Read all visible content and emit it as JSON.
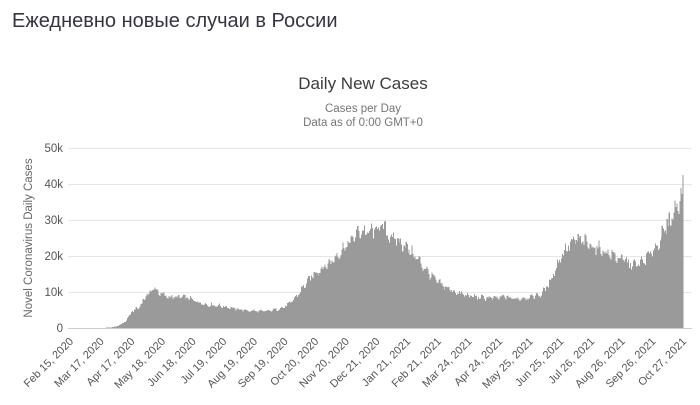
{
  "page": {
    "title": "Ежедневно новые случаи в России"
  },
  "chart": {
    "title": "Daily New Cases",
    "subtitle_line1": "Cases per Day",
    "subtitle_line2": "Data as of 0:00 GMT+0",
    "y_axis_title": "Novel Coronavirus Daily Cases"
  },
  "colors": {
    "page_title": "#35353f",
    "chart_title": "#3c3c3c",
    "subtitle": "#757575",
    "axis_labels": "#555555",
    "y_axis_title": "#666666",
    "bars": "#9a9a9a",
    "gridlines": "#e6e6e6",
    "axis_line": "#cccccc",
    "background": "#ffffff"
  },
  "chart_data": {
    "type": "bar",
    "title": "Daily New Cases",
    "subtitle": [
      "Cases per Day",
      "Data as of 0:00 GMT+0"
    ],
    "ylabel": "Novel Coronavirus Daily Cases",
    "xlabel": "",
    "ylim": [
      0,
      50000
    ],
    "grid": true,
    "legend": false,
    "bar_color": "#9a9a9a",
    "x_range": [
      "2020-02-15",
      "2021-10-27"
    ],
    "y_ticks": [
      [
        0,
        "0"
      ],
      [
        10000,
        "10k"
      ],
      [
        20000,
        "20k"
      ],
      [
        30000,
        "30k"
      ],
      [
        40000,
        "40k"
      ],
      [
        50000,
        "50k"
      ]
    ],
    "x_ticks": [
      [
        0,
        "Feb 15, 2020"
      ],
      [
        31,
        "Mar 17, 2020"
      ],
      [
        62,
        "Apr 17, 2020"
      ],
      [
        93,
        "May 18, 2020"
      ],
      [
        124,
        "Jun 18, 2020"
      ],
      [
        155,
        "Jul 19, 2020"
      ],
      [
        186,
        "Aug 19, 2020"
      ],
      [
        217,
        "Sep 19, 2020"
      ],
      [
        248,
        "Oct 20, 2020"
      ],
      [
        279,
        "Nov 20, 2020"
      ],
      [
        310,
        "Dec 21, 2020"
      ],
      [
        341,
        "Jan 21, 2021"
      ],
      [
        372,
        "Feb 21, 2021"
      ],
      [
        403,
        "Mar 24, 2021"
      ],
      [
        434,
        "Apr 24, 2021"
      ],
      [
        465,
        "May 25, 2021"
      ],
      [
        496,
        "Jun 25, 2021"
      ],
      [
        527,
        "Jul 26, 2021"
      ],
      [
        558,
        "Aug 26, 2021"
      ],
      [
        589,
        "Sep 26, 2021"
      ],
      [
        620,
        "Oct 27, 2021"
      ]
    ],
    "samples": [
      [
        "2020-02-15",
        0
      ],
      [
        "2020-02-29",
        1
      ],
      [
        "2020-03-07",
        5
      ],
      [
        "2020-03-14",
        20
      ],
      [
        "2020-03-21",
        50
      ],
      [
        "2020-03-28",
        180
      ],
      [
        "2020-04-04",
        600
      ],
      [
        "2020-04-11",
        1900
      ],
      [
        "2020-04-18",
        4900
      ],
      [
        "2020-04-25",
        5900
      ],
      [
        "2020-05-02",
        9200
      ],
      [
        "2020-05-09",
        11200
      ],
      [
        "2020-05-11",
        11500
      ],
      [
        "2020-05-16",
        10000
      ],
      [
        "2020-05-23",
        9100
      ],
      [
        "2020-05-30",
        8900
      ],
      [
        "2020-06-06",
        8900
      ],
      [
        "2020-06-13",
        8700
      ],
      [
        "2020-06-20",
        7900
      ],
      [
        "2020-06-27",
        7200
      ],
      [
        "2020-07-04",
        6700
      ],
      [
        "2020-07-11",
        6600
      ],
      [
        "2020-07-18",
        6300
      ],
      [
        "2020-07-25",
        5900
      ],
      [
        "2020-08-01",
        5500
      ],
      [
        "2020-08-08",
        5200
      ],
      [
        "2020-08-15",
        5000
      ],
      [
        "2020-08-22",
        4900
      ],
      [
        "2020-08-29",
        4800
      ],
      [
        "2020-09-05",
        5000
      ],
      [
        "2020-09-12",
        5400
      ],
      [
        "2020-09-19",
        6100
      ],
      [
        "2020-09-26",
        7500
      ],
      [
        "2020-10-03",
        9900
      ],
      [
        "2020-10-10",
        12700
      ],
      [
        "2020-10-17",
        15100
      ],
      [
        "2020-10-24",
        16700
      ],
      [
        "2020-10-31",
        18100
      ],
      [
        "2020-11-07",
        19700
      ],
      [
        "2020-11-14",
        22000
      ],
      [
        "2020-11-21",
        24100
      ],
      [
        "2020-11-28",
        26000
      ],
      [
        "2020-12-05",
        28000
      ],
      [
        "2020-12-12",
        27500
      ],
      [
        "2020-12-19",
        28200
      ],
      [
        "2020-12-26",
        29700
      ],
      [
        "2021-01-02",
        27100
      ],
      [
        "2021-01-09",
        25500
      ],
      [
        "2021-01-16",
        24300
      ],
      [
        "2021-01-23",
        22600
      ],
      [
        "2021-01-30",
        20500
      ],
      [
        "2021-02-06",
        18000
      ],
      [
        "2021-02-13",
        15600
      ],
      [
        "2021-02-20",
        13500
      ],
      [
        "2021-02-27",
        12000
      ],
      [
        "2021-03-06",
        11000
      ],
      [
        "2021-03-13",
        10200
      ],
      [
        "2021-03-20",
        9600
      ],
      [
        "2021-03-27",
        9200
      ],
      [
        "2021-04-03",
        8900
      ],
      [
        "2021-04-10",
        8700
      ],
      [
        "2021-04-17",
        8600
      ],
      [
        "2021-04-24",
        8800
      ],
      [
        "2021-05-01",
        9100
      ],
      [
        "2021-05-08",
        8500
      ],
      [
        "2021-05-15",
        8600
      ],
      [
        "2021-05-22",
        8800
      ],
      [
        "2021-05-29",
        9100
      ],
      [
        "2021-06-05",
        9600
      ],
      [
        "2021-06-12",
        12000
      ],
      [
        "2021-06-19",
        16300
      ],
      [
        "2021-06-26",
        21100
      ],
      [
        "2021-07-03",
        23700
      ],
      [
        "2021-07-10",
        25400
      ],
      [
        "2021-07-17",
        25000
      ],
      [
        "2021-07-24",
        24200
      ],
      [
        "2021-07-31",
        23300
      ],
      [
        "2021-08-07",
        22400
      ],
      [
        "2021-08-14",
        21400
      ],
      [
        "2021-08-21",
        20500
      ],
      [
        "2021-08-28",
        19600
      ],
      [
        "2021-09-04",
        18600
      ],
      [
        "2021-09-11",
        18200
      ],
      [
        "2021-09-18",
        19600
      ],
      [
        "2021-09-25",
        21800
      ],
      [
        "2021-10-02",
        24600
      ],
      [
        "2021-10-09",
        28300
      ],
      [
        "2021-10-16",
        32200
      ],
      [
        "2021-10-23",
        36800
      ],
      [
        "2021-10-27",
        40100
      ]
    ]
  }
}
